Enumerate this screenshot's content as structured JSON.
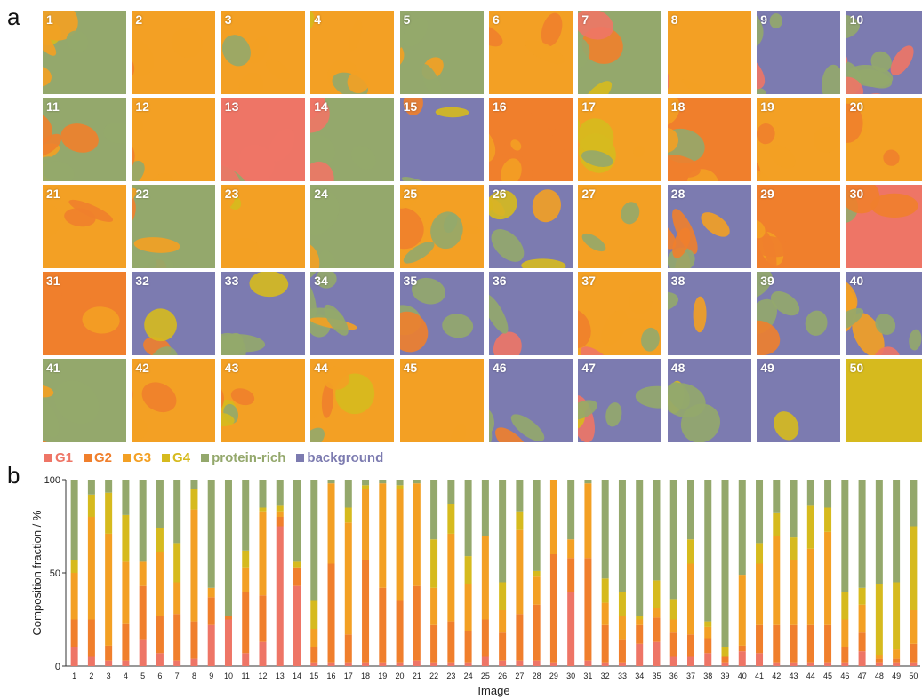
{
  "panel_labels": {
    "a": "a",
    "b": "b"
  },
  "colors": {
    "G1": "#ee7566",
    "G2": "#f07f2c",
    "G3": "#f3a024",
    "G4": "#d6ba1e",
    "protein-rich": "#94a86c",
    "background": "#7c7bb0"
  },
  "legend": [
    {
      "key": "G1",
      "label": "G1"
    },
    {
      "key": "G2",
      "label": "G2"
    },
    {
      "key": "G3",
      "label": "G3"
    },
    {
      "key": "G4",
      "label": "G4"
    },
    {
      "key": "protein-rich",
      "label": "protein-rich"
    },
    {
      "key": "background",
      "label": "background"
    }
  ],
  "image_labels": [
    "1",
    "2",
    "3",
    "4",
    "5",
    "6",
    "7",
    "8",
    "9",
    "10",
    "11",
    "12",
    "13",
    "14",
    "15",
    "16",
    "17",
    "18",
    "19",
    "20",
    "21",
    "22",
    "23",
    "24",
    "25",
    "26",
    "27",
    "28",
    "29",
    "30",
    "31",
    "32",
    "33",
    "34",
    "35",
    "36",
    "37",
    "38",
    "39",
    "40",
    "41",
    "42",
    "43",
    "44",
    "45",
    "46",
    "47",
    "48",
    "49",
    "50"
  ],
  "chart_data": {
    "type": "bar",
    "stacked": true,
    "xlabel": "Image",
    "ylabel": "Composition fraction / %",
    "ylim": [
      0,
      100
    ],
    "yticks": [
      0,
      50,
      100
    ],
    "categories": [
      "1",
      "2",
      "3",
      "4",
      "5",
      "6",
      "7",
      "8",
      "9",
      "10",
      "11",
      "12",
      "13",
      "14",
      "15",
      "16",
      "17",
      "18",
      "19",
      "20",
      "21",
      "22",
      "23",
      "24",
      "25",
      "26",
      "27",
      "28",
      "29",
      "30",
      "31",
      "32",
      "33",
      "34",
      "35",
      "36",
      "37",
      "38",
      "39",
      "40",
      "41",
      "42",
      "43",
      "44",
      "45",
      "46",
      "47",
      "48",
      "49",
      "50"
    ],
    "series": [
      {
        "name": "G1",
        "color": "#ee7566",
        "values": [
          10,
          5,
          3,
          3,
          14,
          7,
          3,
          4,
          22,
          25,
          7,
          13,
          75,
          43,
          2,
          2,
          2,
          2,
          2,
          2,
          3,
          2,
          2,
          2,
          5,
          3,
          3,
          3,
          2,
          40,
          3,
          2,
          2,
          12,
          13,
          5,
          5,
          7,
          2,
          8,
          7,
          2,
          2,
          2,
          2,
          2,
          8,
          2,
          2,
          2
        ]
      },
      {
        "name": "G2",
        "color": "#f07f2c",
        "values": [
          15,
          20,
          8,
          20,
          29,
          20,
          25,
          20,
          15,
          2,
          33,
          25,
          5,
          10,
          8,
          53,
          15,
          55,
          40,
          33,
          40,
          20,
          22,
          17,
          20,
          15,
          25,
          30,
          58,
          18,
          55,
          20,
          12,
          10,
          13,
          13,
          12,
          8,
          3,
          3,
          15,
          20,
          20,
          20,
          20,
          8,
          10,
          2,
          2,
          10
        ]
      },
      {
        "name": "G3",
        "color": "#f3a024",
        "values": [
          25,
          55,
          60,
          33,
          13,
          34,
          17,
          60,
          5,
          0,
          13,
          45,
          3,
          0,
          10,
          43,
          60,
          38,
          56,
          60,
          55,
          20,
          47,
          25,
          45,
          12,
          45,
          15,
          40,
          10,
          40,
          12,
          13,
          3,
          5,
          7,
          38,
          6,
          0,
          38,
          33,
          48,
          35,
          41,
          50,
          15,
          15,
          2,
          5,
          18
        ]
      },
      {
        "name": "G4",
        "color": "#d6ba1e",
        "values": [
          7,
          12,
          22,
          25,
          0,
          13,
          21,
          11,
          0,
          0,
          9,
          2,
          3,
          3,
          15,
          0,
          8,
          2,
          0,
          2,
          0,
          26,
          16,
          15,
          0,
          15,
          10,
          3,
          0,
          0,
          0,
          13,
          13,
          2,
          15,
          11,
          13,
          3,
          5,
          0,
          11,
          12,
          12,
          23,
          13,
          15,
          9,
          38,
          36,
          45
        ]
      },
      {
        "name": "protein-rich",
        "color": "#94a86c",
        "values": [
          43,
          8,
          7,
          19,
          44,
          26,
          34,
          5,
          58,
          73,
          38,
          15,
          14,
          44,
          65,
          2,
          15,
          3,
          2,
          3,
          2,
          32,
          13,
          41,
          30,
          55,
          17,
          49,
          0,
          32,
          2,
          53,
          60,
          73,
          54,
          64,
          32,
          76,
          90,
          51,
          34,
          18,
          31,
          14,
          15,
          60,
          58,
          56,
          55,
          25
        ]
      }
    ]
  }
}
